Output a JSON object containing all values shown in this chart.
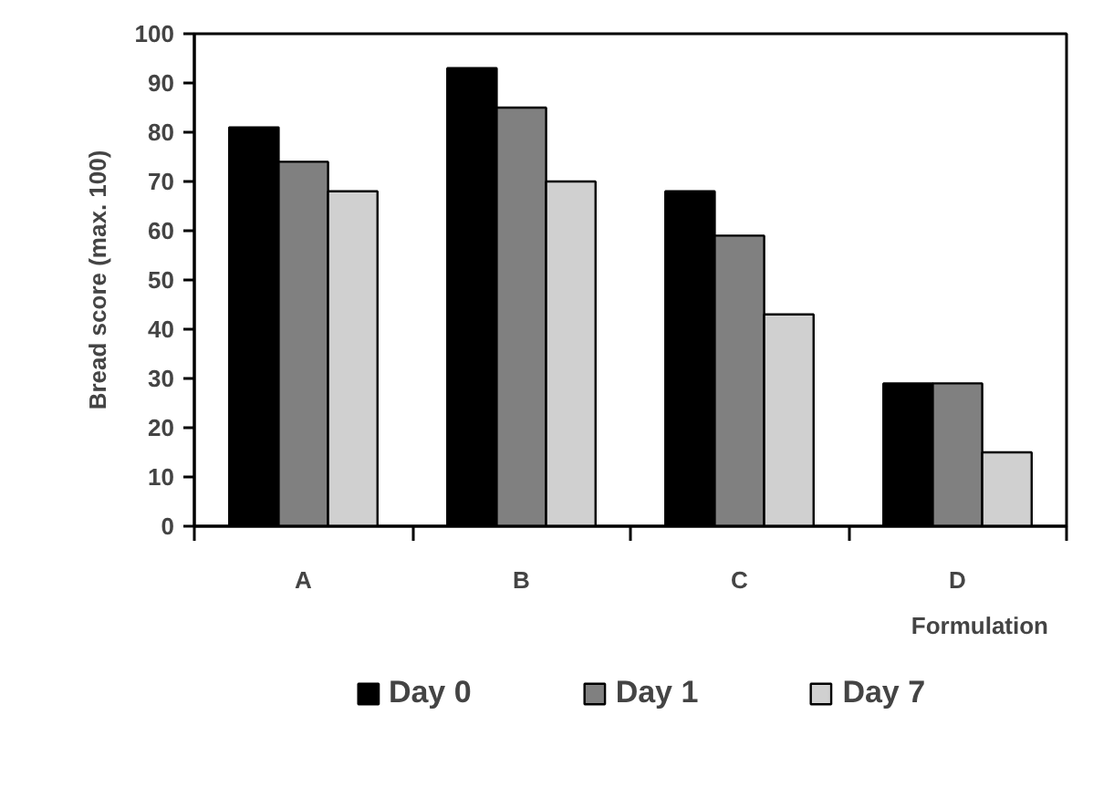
{
  "chart_data": {
    "type": "bar",
    "xlabel": "Formulation",
    "ylabel": "Bread score (max. 100)",
    "categories": [
      "A",
      "B",
      "C",
      "D"
    ],
    "series": [
      {
        "name": "Day 0",
        "color": "#000000",
        "values": [
          81,
          93,
          68,
          29
        ]
      },
      {
        "name": "Day 1",
        "color": "#808080",
        "values": [
          74,
          85,
          59,
          29
        ]
      },
      {
        "name": "Day 7",
        "color": "#d0d0d0",
        "values": [
          68,
          70,
          43,
          15
        ]
      }
    ],
    "ylim": [
      0,
      100
    ],
    "yticks": [
      0,
      10,
      20,
      30,
      40,
      50,
      60,
      70,
      80,
      90,
      100
    ],
    "grid": false,
    "legend": "bottom"
  }
}
